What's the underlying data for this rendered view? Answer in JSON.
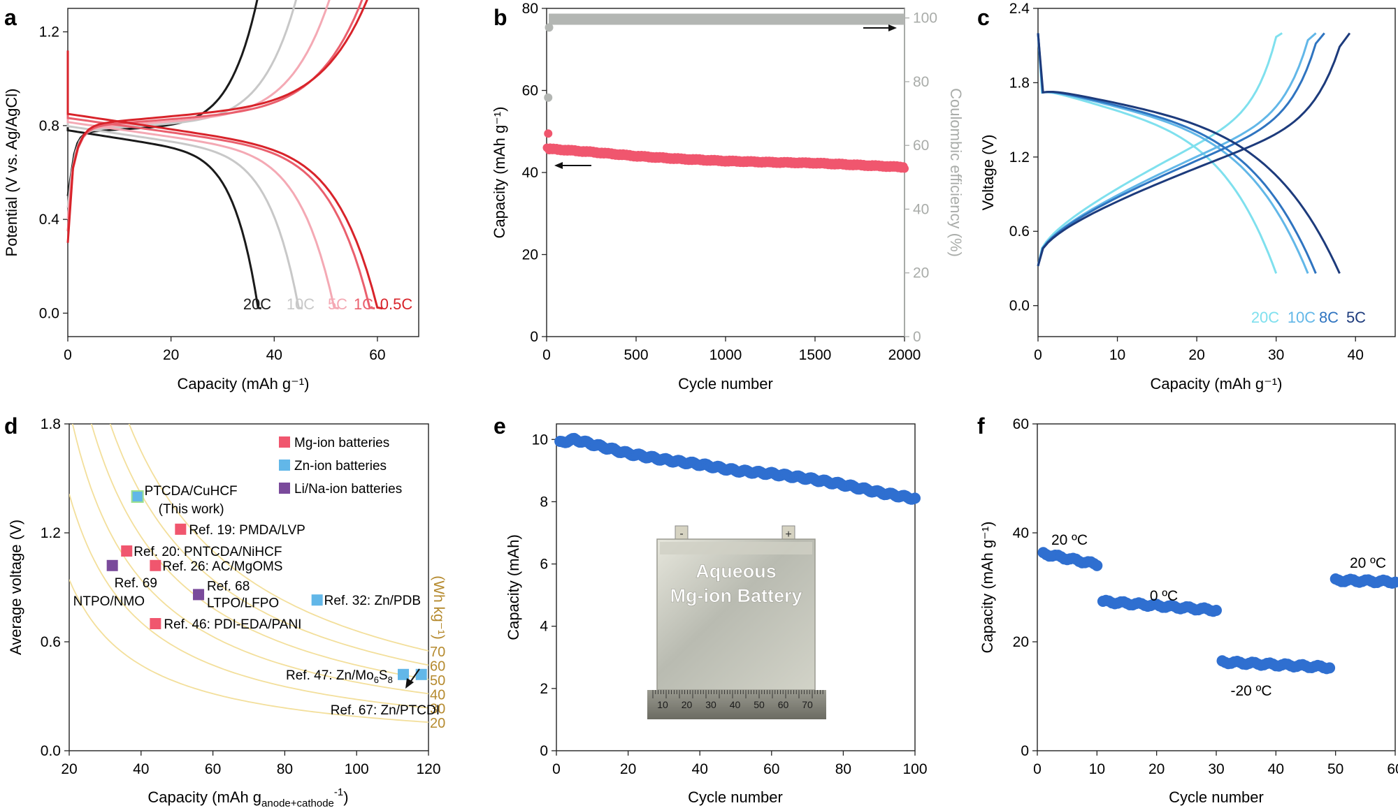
{
  "chart_data": [
    {
      "panel": "a",
      "type": "line",
      "xlabel": "Capacity (mAh g⁻¹)",
      "ylabel": "Potential (V vs. Ag/AgCl)",
      "xlim": [
        0,
        68
      ],
      "ylim": [
        -0.1,
        1.3
      ],
      "xticks": [
        0,
        20,
        40,
        60
      ],
      "yticks": [
        0.0,
        0.4,
        0.8,
        1.2
      ],
      "series": [
        {
          "name": "20C",
          "color": "#1a1a1a",
          "capacity": 37.5
        },
        {
          "name": "10C",
          "color": "#c8c8c8",
          "capacity": 45.5
        },
        {
          "name": "5C",
          "color": "#f4a9b4",
          "capacity": 52.5
        },
        {
          "name": "1C",
          "color": "#ea5f6d",
          "capacity": 59.5
        },
        {
          "name": "0.5C",
          "color": "#d8232a",
          "capacity": 61
        }
      ]
    },
    {
      "panel": "b",
      "type": "scatter",
      "xlabel": "Cycle number",
      "ylabel": "Capacity (mAh g⁻¹)",
      "y2label": "Coulombic efficiency (%)",
      "xlim": [
        0,
        2000
      ],
      "ylim": [
        0,
        80
      ],
      "y2lim": [
        0,
        103
      ],
      "xticks": [
        0,
        500,
        1000,
        1500,
        2000
      ],
      "yticks": [
        0,
        20,
        40,
        60,
        80
      ],
      "y2ticks": [
        0,
        20,
        40,
        60,
        80,
        100
      ],
      "series": [
        {
          "name": "Capacity",
          "axis": "left",
          "color": "#f0566e",
          "x": [
            1,
            2,
            250,
            500,
            750,
            1000,
            1250,
            1500,
            1750,
            2000
          ],
          "y": [
            49.5,
            45.8,
            45,
            44,
            43.3,
            42.8,
            42.5,
            42.3,
            41.8,
            41.3
          ]
        },
        {
          "name": "Coulombic efficiency",
          "axis": "right",
          "color": "#b3b6b3",
          "x": [
            1,
            2,
            10,
            500,
            1000,
            1500,
            2000
          ],
          "y": [
            75,
            97,
            99.5,
            99.6,
            99.6,
            99.6,
            99.6
          ]
        }
      ]
    },
    {
      "panel": "c",
      "type": "line",
      "xlabel": "Capacity (mAh g⁻¹)",
      "ylabel": "Voltage (V)",
      "xlim": [
        0,
        45
      ],
      "ylim": [
        -0.25,
        2.4
      ],
      "xticks": [
        0,
        10,
        20,
        30,
        40
      ],
      "yticks": [
        0.0,
        0.6,
        1.2,
        1.8,
        2.4
      ],
      "series": [
        {
          "name": "20C",
          "color": "#7fe0ee",
          "capacity": 30
        },
        {
          "name": "10C",
          "color": "#62b7e8",
          "capacity": 34
        },
        {
          "name": "8C",
          "color": "#2f74c0",
          "capacity": 35
        },
        {
          "name": "5C",
          "color": "#1d3b7c",
          "capacity": 38
        }
      ]
    },
    {
      "panel": "d",
      "type": "scatter",
      "xlabel": "Capacity (mAh g",
      "xlabel_sub": "anode+cathode",
      "xlabel_sup": "-1",
      "xlabel_tail": ")",
      "ylabel": "Average voltage (V)",
      "xlim": [
        20,
        120
      ],
      "ylim": [
        0,
        1.8
      ],
      "xticks": [
        20,
        40,
        60,
        80,
        100,
        120
      ],
      "yticks": [
        0.0,
        0.6,
        1.2,
        1.8
      ],
      "energy_unit": "(Wh kg⁻¹)",
      "energy_curves": [
        20,
        30,
        40,
        50,
        60,
        70
      ],
      "legend": [
        {
          "label": "Mg-ion batteries",
          "color": "#f0566e"
        },
        {
          "label": "Zn-ion batteries",
          "color": "#62b7e8"
        },
        {
          "label": "Li/Na-ion batteries",
          "color": "#7a4a9b"
        }
      ],
      "points": [
        {
          "label": "PTCDA/CuHCF",
          "label2": "(This work)",
          "x": 39,
          "y": 1.4,
          "cat": "zn"
        },
        {
          "label": "Ref. 19: PMDA/LVP",
          "x": 51,
          "y": 1.22,
          "cat": "mg"
        },
        {
          "label": "Ref. 20: PNTCDA/NiHCF",
          "x": 36,
          "y": 1.1,
          "cat": "mg"
        },
        {
          "label": "Ref. 26: AC/MgOMS",
          "x": 44,
          "y": 1.02,
          "cat": "mg"
        },
        {
          "label": "Ref. 69",
          "label2": "NTPO/NMO",
          "x": 32,
          "y": 1.02,
          "cat": "li"
        },
        {
          "label": "Ref. 68",
          "label2": "LTPO/LFPO",
          "x": 56,
          "y": 0.86,
          "cat": "li"
        },
        {
          "label": "Ref. 32: Zn/PDB",
          "x": 89,
          "y": 0.83,
          "cat": "zn"
        },
        {
          "label": "Ref. 46: PDI-EDA/PANI",
          "x": 44,
          "y": 0.7,
          "cat": "mg"
        },
        {
          "label": "Ref. 47: Zn/Mo",
          "label_sub": "6",
          "label_mid": "S",
          "label_sub2": "8",
          "x": 113,
          "y": 0.42,
          "cat": "zn"
        },
        {
          "label": "Ref. 67: Zn/PTCDI",
          "x": 118,
          "y": 0.42,
          "cat": "zn"
        }
      ]
    },
    {
      "panel": "e",
      "type": "scatter",
      "xlabel": "Cycle number",
      "ylabel": "Capacity (mAh)",
      "xlim": [
        0,
        100
      ],
      "ylim": [
        0,
        10.5
      ],
      "xticks": [
        0,
        20,
        40,
        60,
        80,
        100
      ],
      "yticks": [
        0,
        2,
        4,
        6,
        8,
        10
      ],
      "color": "#2f6fd0",
      "x": [
        1,
        5,
        10,
        20,
        30,
        40,
        50,
        60,
        70,
        80,
        90,
        100
      ],
      "y": [
        9.9,
        10.0,
        9.85,
        9.55,
        9.35,
        9.2,
        9.0,
        8.9,
        8.75,
        8.55,
        8.3,
        8.1
      ],
      "inset": {
        "title1": "Aqueous",
        "title2": "Mg-ion Battery",
        "minus": "-",
        "plus": "+",
        "ruler": [
          "10",
          "20",
          "30",
          "40",
          "50",
          "60",
          "70"
        ]
      }
    },
    {
      "panel": "f",
      "type": "scatter",
      "xlabel": "Cycle number",
      "ylabel": "Capacity (mAh g⁻¹)",
      "xlim": [
        0,
        60
      ],
      "ylim": [
        0,
        60
      ],
      "xticks": [
        0,
        10,
        20,
        30,
        40,
        50,
        60
      ],
      "yticks": [
        0,
        20,
        40,
        60
      ],
      "color": "#2f6fd0",
      "segments": [
        {
          "label": "20 ºC",
          "x": [
            1,
            10
          ],
          "y": [
            36.2,
            34.2
          ]
        },
        {
          "label": "0 ºC",
          "x": [
            11,
            30
          ],
          "y": [
            27.4,
            25.8
          ]
        },
        {
          "label": "-20 ºC",
          "x": [
            31,
            49
          ],
          "y": [
            16.3,
            15.3
          ]
        },
        {
          "label": "20 ºC",
          "x": [
            50,
            60
          ],
          "y": [
            31.3,
            31.0
          ]
        }
      ]
    }
  ],
  "panel_letters": [
    "a",
    "b",
    "c",
    "d",
    "e",
    "f"
  ]
}
